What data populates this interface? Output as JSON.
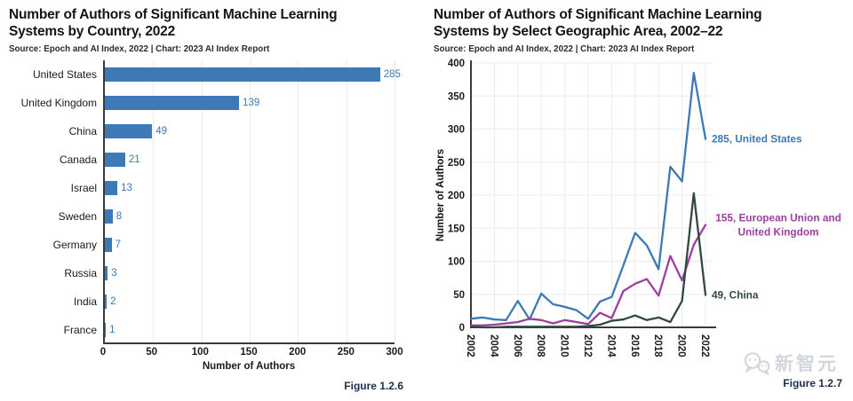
{
  "colors": {
    "blue": "#3d79b4",
    "purple": "#9c3f9e",
    "green": "#31493f",
    "navy": "#1d2e4e",
    "grid": "#ececec",
    "axis": "#3a3a3a",
    "tick_text": "#1c1c1c",
    "watermark": "#d2d6dc"
  },
  "watermark": {
    "icon": "wechat-chat-bubbles-icon",
    "text": "新智元"
  },
  "chart_data": [
    {
      "type": "bar",
      "orientation": "horizontal",
      "title": "Number of Authors of Significant Machine Learning Systems by Country, 2022",
      "source": "Source: Epoch and AI Index, 2022 | Chart: 2023 AI Index Report",
      "figure_label": "Figure 1.2.6",
      "categories": [
        "United States",
        "United Kingdom",
        "China",
        "Canada",
        "Israel",
        "Sweden",
        "Germany",
        "Russia",
        "India",
        "France"
      ],
      "values": [
        285,
        139,
        49,
        21,
        13,
        8,
        7,
        3,
        2,
        1
      ],
      "xlabel": "Number of Authors",
      "xlim": [
        0,
        300
      ],
      "xticks": [
        0,
        50,
        100,
        150,
        200,
        250,
        300
      ],
      "bar_color": "#3d79b4",
      "grid": "vertical-light"
    },
    {
      "type": "line",
      "title": "Number of Authors of Significant Machine Learning Systems by Select Geographic Area, 2002–22",
      "source": "Source: Epoch and AI Index, 2022 | Chart: 2023 AI Index Report",
      "figure_label": "Figure 1.2.7",
      "ylabel": "Number of Authors",
      "x": [
        2002,
        2003,
        2004,
        2005,
        2006,
        2007,
        2008,
        2009,
        2010,
        2011,
        2012,
        2013,
        2014,
        2015,
        2016,
        2017,
        2018,
        2019,
        2020,
        2021,
        2022
      ],
      "xticks": [
        2002,
        2004,
        2006,
        2008,
        2010,
        2012,
        2014,
        2016,
        2018,
        2020,
        2022
      ],
      "ylim": [
        0,
        400
      ],
      "yticks": [
        0,
        50,
        100,
        150,
        200,
        250,
        300,
        350,
        400
      ],
      "grid": "both-light",
      "legend": "end-of-line-annotations",
      "series": [
        {
          "name": "United States",
          "color": "#3d79b4",
          "values": [
            13,
            15,
            12,
            11,
            40,
            12,
            51,
            35,
            31,
            26,
            13,
            39,
            46,
            94,
            143,
            124,
            88,
            243,
            221,
            385,
            285
          ],
          "end_label_lines": [
            "285, United States"
          ]
        },
        {
          "name": "European Union and United Kingdom",
          "color": "#9c3f9e",
          "values": [
            3,
            3,
            4,
            6,
            8,
            13,
            11,
            6,
            11,
            8,
            5,
            22,
            14,
            55,
            66,
            73,
            48,
            108,
            71,
            125,
            155
          ],
          "end_label_lines": [
            "155, European Union and",
            "United Kingdom"
          ]
        },
        {
          "name": "China",
          "color": "#31493f",
          "values": [
            1,
            0,
            0,
            1,
            1,
            1,
            1,
            1,
            1,
            1,
            2,
            4,
            10,
            12,
            18,
            11,
            15,
            8,
            40,
            203,
            49
          ],
          "end_label_lines": [
            "49, China"
          ]
        }
      ]
    }
  ]
}
